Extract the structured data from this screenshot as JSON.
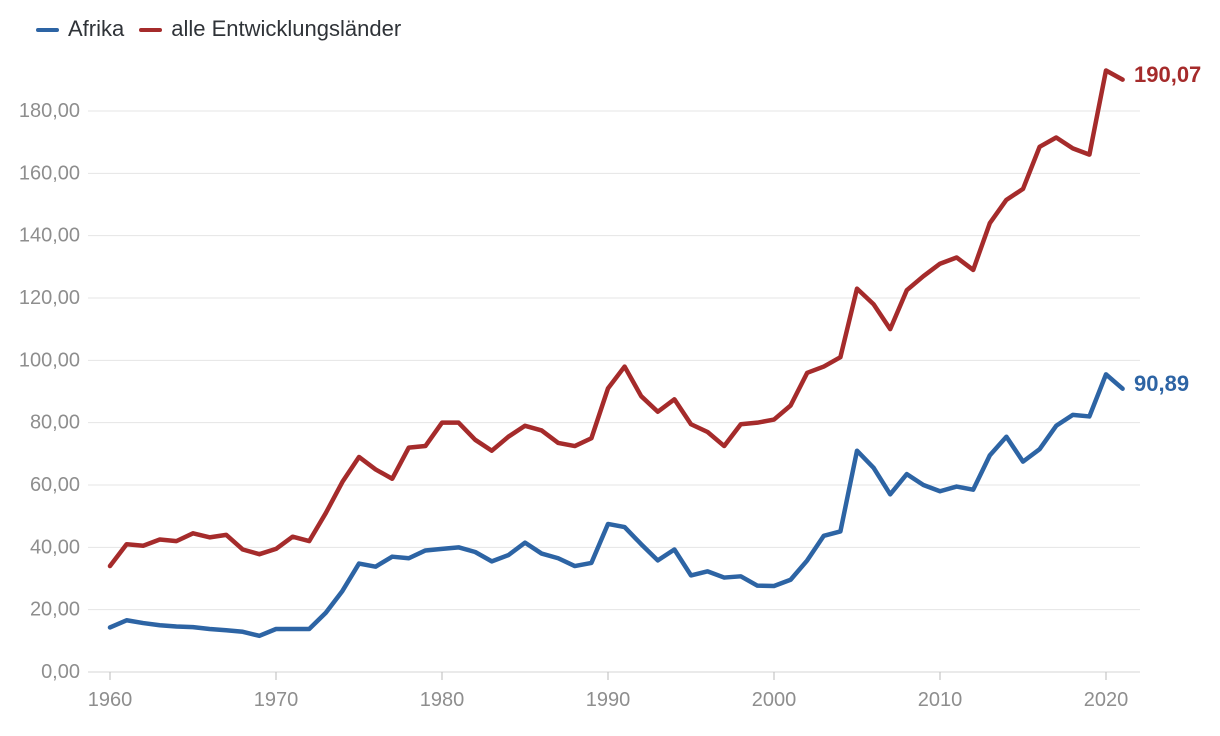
{
  "chart_data": {
    "type": "line",
    "title": "",
    "grid": "horizontal",
    "legend_position": "top-left",
    "x_start": 1960,
    "x_end": 2021,
    "ylim": [
      0,
      196
    ],
    "years": [
      1960,
      1961,
      1962,
      1963,
      1964,
      1965,
      1966,
      1967,
      1968,
      1969,
      1970,
      1971,
      1972,
      1973,
      1974,
      1975,
      1976,
      1977,
      1978,
      1979,
      1980,
      1981,
      1982,
      1983,
      1984,
      1985,
      1986,
      1987,
      1988,
      1989,
      1990,
      1991,
      1992,
      1993,
      1994,
      1995,
      1996,
      1997,
      1998,
      1999,
      2000,
      2001,
      2002,
      2003,
      2004,
      2005,
      2006,
      2007,
      2008,
      2009,
      2010,
      2011,
      2012,
      2013,
      2014,
      2015,
      2016,
      2017,
      2018,
      2019,
      2020,
      2021
    ],
    "series": [
      {
        "name": "Afrika",
        "color": "#2d64a4",
        "end_label": "90,89",
        "values": [
          14.3,
          16.6,
          15.7,
          15,
          14.6,
          14.4,
          13.8,
          13.4,
          12.9,
          11.6,
          13.8,
          13.8,
          13.8,
          19,
          26,
          34.8,
          33.8,
          37,
          36.5,
          39,
          39.5,
          40,
          38.5,
          35.5,
          37.5,
          41.5,
          38,
          36.5,
          34,
          35,
          47.5,
          46.5,
          41,
          35.8,
          39.3,
          31,
          32.3,
          30.3,
          30.7,
          27.7,
          27.6,
          29.6,
          35.8,
          43.7,
          45.1,
          71,
          65.5,
          57,
          63.5,
          60,
          58,
          59.5,
          58.5,
          69.5,
          75.5,
          67.5,
          71.5,
          79,
          82.5,
          82,
          95.5,
          90.89
        ]
      },
      {
        "name": "alle Entwicklungsländer",
        "color": "#a52b2b",
        "end_label": "190,07",
        "values": [
          34,
          41,
          40.5,
          42.5,
          42,
          44.5,
          43.2,
          44,
          39.3,
          37.8,
          39.5,
          43.4,
          42,
          51,
          61,
          69,
          65,
          62,
          72,
          72.5,
          80,
          80,
          74.5,
          71,
          75.5,
          79,
          77.5,
          73.5,
          72.5,
          75,
          91,
          98,
          88.5,
          83.5,
          87.5,
          79.5,
          77,
          72.5,
          79.5,
          80,
          81,
          85.5,
          96,
          98,
          101,
          123,
          118,
          110,
          122.5,
          127,
          131,
          133,
          129,
          144,
          151.5,
          155,
          168.5,
          171.5,
          168,
          166,
          193,
          190.07
        ]
      }
    ],
    "y_ticks": [
      {
        "value": 0,
        "label": "0,00"
      },
      {
        "value": 20,
        "label": "20,00"
      },
      {
        "value": 40,
        "label": "40,00"
      },
      {
        "value": 60,
        "label": "60,00"
      },
      {
        "value": 80,
        "label": "80,00"
      },
      {
        "value": 100,
        "label": "100,00"
      },
      {
        "value": 120,
        "label": "120,00"
      },
      {
        "value": 140,
        "label": "140,00"
      },
      {
        "value": 160,
        "label": "160,00"
      },
      {
        "value": 180,
        "label": "180,00"
      }
    ],
    "x_ticks": [
      "1960",
      "1970",
      "1980",
      "1990",
      "2000",
      "2010",
      "2020"
    ],
    "colors": {
      "grid": "#e4e4e4",
      "axis": "#d6d6d6",
      "tick": "#bbbbbb",
      "axis_text": "#8e8e8e",
      "legend_text": "#2f3338",
      "background": "#ffffff"
    }
  }
}
